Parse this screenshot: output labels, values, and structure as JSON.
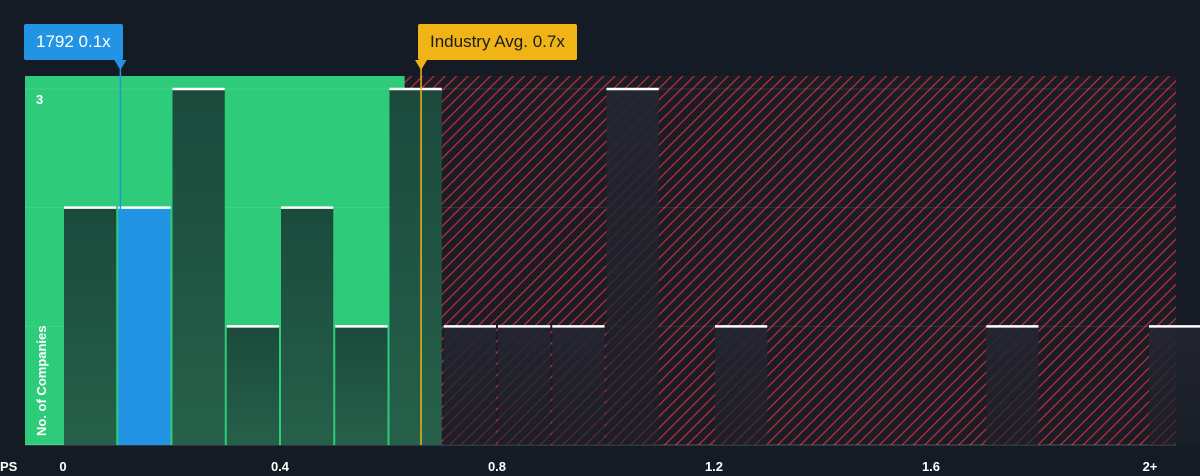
{
  "chart_data": {
    "type": "bar",
    "title": "",
    "xlabel": "PS",
    "ylabel": "No. of Companies",
    "ylim": [
      0,
      3
    ],
    "y_ticks": [
      "3"
    ],
    "x_ticks": [
      "0",
      "0.4",
      "0.8",
      "1.2",
      "1.6",
      "2+"
    ],
    "x_tick_values": [
      0,
      0.4,
      0.8,
      1.2,
      1.6,
      2.0
    ],
    "bin_width": 0.1,
    "bins": [
      {
        "x": 0.0,
        "count": 2
      },
      {
        "x": 0.1,
        "count": 2,
        "highlight": true
      },
      {
        "x": 0.2,
        "count": 3
      },
      {
        "x": 0.3,
        "count": 1
      },
      {
        "x": 0.4,
        "count": 2
      },
      {
        "x": 0.5,
        "count": 1
      },
      {
        "x": 0.6,
        "count": 3
      },
      {
        "x": 0.7,
        "count": 1
      },
      {
        "x": 0.8,
        "count": 1
      },
      {
        "x": 0.9,
        "count": 1
      },
      {
        "x": 1.0,
        "count": 3
      },
      {
        "x": 1.2,
        "count": 1
      },
      {
        "x": 1.7,
        "count": 1
      },
      {
        "x": 2.0,
        "count": 1
      }
    ],
    "company": {
      "label": "1792 0.1x",
      "value": 0.1
    },
    "industry_avg": {
      "label": "Industry Avg. 0.7x",
      "value": 0.66
    },
    "fair_zone_max": 0.63,
    "colors": {
      "background": "#151b24",
      "fair_zone": "#2ecb7a",
      "expensive_zone_stripe": "#c0313a",
      "company": "#2394e4",
      "industry": "#f0b416",
      "bar": "#1d4a3a",
      "bar_cap": "#ffffff"
    }
  }
}
